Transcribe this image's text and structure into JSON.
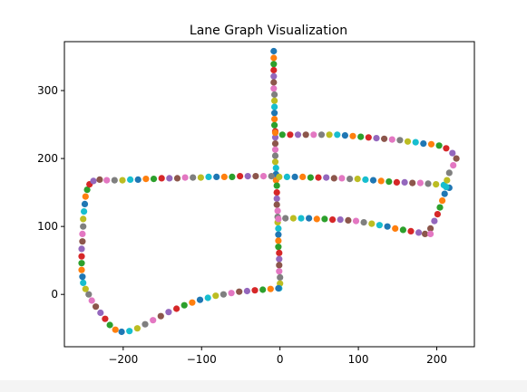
{
  "chart_data": {
    "type": "scatter",
    "title": "Lane Graph Visualization",
    "xlabel": "",
    "ylabel": "",
    "xlim": [
      -275,
      248
    ],
    "ylim": [
      -77,
      372
    ],
    "x_ticks": [
      -200,
      -100,
      0,
      100,
      200
    ],
    "y_ticks": [
      0,
      100,
      200,
      300
    ],
    "x_tick_labels": [
      "−200",
      "−100",
      "0",
      "100",
      "200"
    ],
    "y_tick_labels": [
      "0",
      "100",
      "200",
      "300"
    ],
    "grid": false,
    "legend": "none",
    "colors": [
      "#1f77b4",
      "#ff7f0e",
      "#2ca02c",
      "#d62728",
      "#9467bd",
      "#8c564b",
      "#e377c2",
      "#7f7f7f",
      "#bcbd22",
      "#17becf"
    ],
    "lanes": [
      {
        "description_points": "vertical center lane",
        "points": [
          [
            -8,
            358
          ],
          [
            -8,
            348
          ],
          [
            -8,
            339
          ],
          [
            -8,
            330
          ],
          [
            -8,
            321
          ],
          [
            -8,
            312
          ],
          [
            -8,
            303
          ],
          [
            -7,
            294
          ],
          [
            -7,
            285
          ],
          [
            -7,
            276
          ],
          [
            -7,
            267
          ],
          [
            -7,
            258
          ],
          [
            -7,
            249
          ],
          [
            -6,
            240
          ],
          [
            -6,
            231
          ],
          [
            -6,
            222
          ],
          [
            -6,
            213
          ],
          [
            -6,
            204
          ],
          [
            -6,
            195
          ],
          [
            -5,
            186
          ],
          [
            -5,
            177
          ],
          [
            -5,
            168
          ],
          [
            -4,
            160
          ],
          [
            -4,
            150
          ],
          [
            -4,
            141
          ],
          [
            -4,
            132
          ],
          [
            -3,
            123
          ],
          [
            -3,
            114
          ],
          [
            -3,
            106
          ],
          [
            -2,
            97
          ],
          [
            -2,
            88
          ],
          [
            -2,
            79
          ],
          [
            -2,
            70
          ],
          [
            -1,
            61
          ],
          [
            -1,
            52
          ],
          [
            -1,
            43
          ],
          [
            -1,
            34
          ],
          [
            0,
            25
          ],
          [
            0,
            16
          ],
          [
            -1,
            9
          ]
        ]
      },
      {
        "description_points": "outer loop (left side)",
        "points": [
          [
            -2,
            9
          ],
          [
            -12,
            8
          ],
          [
            -22,
            7
          ],
          [
            -32,
            6
          ],
          [
            -42,
            5
          ],
          [
            -52,
            4
          ],
          [
            -62,
            2
          ],
          [
            -72,
            0
          ],
          [
            -82,
            -2
          ],
          [
            -92,
            -5
          ],
          [
            -102,
            -8
          ],
          [
            -112,
            -12
          ],
          [
            -122,
            -16
          ],
          [
            -132,
            -21
          ],
          [
            -142,
            -26
          ],
          [
            -152,
            -32
          ],
          [
            -162,
            -38
          ],
          [
            -172,
            -44
          ],
          [
            -182,
            -50
          ],
          [
            -192,
            -54
          ],
          [
            -202,
            -55
          ],
          [
            -210,
            -52
          ],
          [
            -217,
            -45
          ],
          [
            -223,
            -36
          ],
          [
            -229,
            -27
          ],
          [
            -235,
            -18
          ],
          [
            -240,
            -9
          ],
          [
            -244,
            0
          ],
          [
            -248,
            8
          ],
          [
            -251,
            17
          ],
          [
            -252,
            26
          ],
          [
            -253,
            36
          ],
          [
            -253,
            46
          ],
          [
            -253,
            56
          ],
          [
            -253,
            67
          ],
          [
            -252,
            78
          ],
          [
            -252,
            89
          ],
          [
            -251,
            100
          ],
          [
            -251,
            111
          ],
          [
            -250,
            122
          ],
          [
            -249,
            133
          ],
          [
            -248,
            144
          ],
          [
            -246,
            154
          ],
          [
            -243,
            162
          ],
          [
            -238,
            167
          ],
          [
            -230,
            169
          ],
          [
            -221,
            168
          ],
          [
            -211,
            168
          ],
          [
            -201,
            168
          ],
          [
            -191,
            169
          ],
          [
            -181,
            169
          ],
          [
            -171,
            170
          ],
          [
            -161,
            170
          ],
          [
            -151,
            171
          ],
          [
            -141,
            171
          ],
          [
            -131,
            171
          ],
          [
            -121,
            172
          ],
          [
            -111,
            172
          ],
          [
            -101,
            172
          ],
          [
            -91,
            173
          ],
          [
            -81,
            173
          ],
          [
            -71,
            173
          ],
          [
            -61,
            173
          ],
          [
            -51,
            174
          ],
          [
            -41,
            174
          ],
          [
            -31,
            174
          ],
          [
            -21,
            174
          ],
          [
            -11,
            174
          ],
          [
            -1,
            173
          ],
          [
            9,
            173
          ],
          [
            19,
            173
          ],
          [
            29,
            173
          ],
          [
            39,
            172
          ],
          [
            49,
            172
          ],
          [
            59,
            172
          ],
          [
            69,
            171
          ],
          [
            79,
            171
          ],
          [
            89,
            170
          ],
          [
            99,
            170
          ],
          [
            109,
            169
          ],
          [
            119,
            168
          ],
          [
            129,
            167
          ],
          [
            139,
            166
          ],
          [
            149,
            165
          ],
          [
            159,
            165
          ],
          [
            169,
            164
          ],
          [
            179,
            164
          ],
          [
            189,
            163
          ],
          [
            199,
            162
          ],
          [
            209,
            161
          ],
          [
            216,
            157
          ]
        ]
      },
      {
        "description_points": "upper right loop",
        "points": [
          [
            -6,
            238
          ],
          [
            3,
            235
          ],
          [
            13,
            235
          ],
          [
            23,
            235
          ],
          [
            33,
            235
          ],
          [
            43,
            235
          ],
          [
            53,
            235
          ],
          [
            63,
            235
          ],
          [
            73,
            235
          ],
          [
            83,
            234
          ],
          [
            93,
            233
          ],
          [
            103,
            232
          ],
          [
            113,
            231
          ],
          [
            123,
            230
          ],
          [
            133,
            229
          ],
          [
            143,
            228
          ],
          [
            153,
            227
          ],
          [
            163,
            225
          ],
          [
            173,
            224
          ],
          [
            183,
            222
          ],
          [
            193,
            221
          ],
          [
            203,
            219
          ],
          [
            212,
            215
          ],
          [
            220,
            208
          ],
          [
            225,
            200
          ],
          [
            221,
            190
          ],
          [
            216,
            179
          ],
          [
            213,
            168
          ],
          [
            212,
            158
          ],
          [
            210,
            148
          ],
          [
            207,
            138
          ],
          [
            204,
            128
          ],
          [
            201,
            118
          ],
          [
            197,
            108
          ],
          [
            192,
            97
          ]
        ]
      },
      {
        "description_points": "lower right loop",
        "points": [
          [
            -2,
            111
          ],
          [
            7,
            112
          ],
          [
            17,
            112
          ],
          [
            27,
            112
          ],
          [
            37,
            112
          ],
          [
            47,
            111
          ],
          [
            57,
            111
          ],
          [
            67,
            110
          ],
          [
            77,
            110
          ],
          [
            87,
            109
          ],
          [
            97,
            108
          ],
          [
            107,
            106
          ],
          [
            117,
            104
          ],
          [
            127,
            102
          ],
          [
            137,
            100
          ],
          [
            147,
            97
          ],
          [
            157,
            95
          ],
          [
            167,
            93
          ],
          [
            177,
            91
          ],
          [
            185,
            89
          ],
          [
            192,
            89
          ]
        ]
      }
    ]
  }
}
